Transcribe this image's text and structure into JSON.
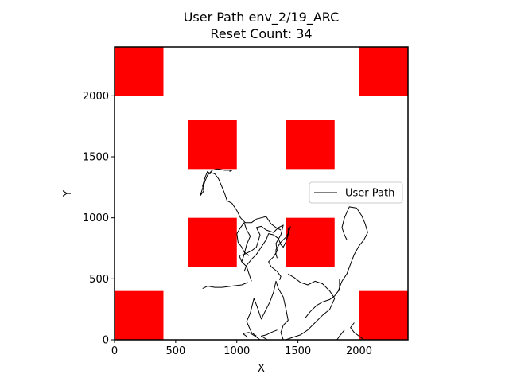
{
  "chart_data": {
    "type": "line",
    "title_lines": [
      "User Path env_2/19_ARC",
      "Reset Count: 34"
    ],
    "xlabel": "X",
    "ylabel": "Y",
    "xlim": [
      0,
      2400
    ],
    "ylim": [
      0,
      2400
    ],
    "xticks": [
      0,
      500,
      1000,
      1500,
      2000
    ],
    "yticks": [
      0,
      500,
      1000,
      1500,
      2000
    ],
    "grid": false,
    "legend_position": "center-right",
    "obstacle_color": "#ff0000",
    "path_color": "#000000",
    "obstacles": [
      {
        "x": 0,
        "y": 2000,
        "width": 400,
        "height": 400
      },
      {
        "x": 2000,
        "y": 2000,
        "width": 400,
        "height": 400
      },
      {
        "x": 600,
        "y": 1400,
        "width": 400,
        "height": 400
      },
      {
        "x": 1400,
        "y": 1400,
        "width": 400,
        "height": 400
      },
      {
        "x": 600,
        "y": 600,
        "width": 400,
        "height": 400
      },
      {
        "x": 1400,
        "y": 600,
        "width": 400,
        "height": 400
      },
      {
        "x": 0,
        "y": 0,
        "width": 400,
        "height": 400
      },
      {
        "x": 2000,
        "y": 0,
        "width": 400,
        "height": 400
      }
    ],
    "series": [
      {
        "name": "User Path",
        "segments": [
          [
            [
              1840,
              430
            ],
            [
              1860,
              480
            ],
            [
              1900,
              540
            ],
            [
              1930,
              620
            ],
            [
              1960,
              700
            ],
            [
              2000,
              770
            ],
            [
              2040,
              820
            ],
            [
              2070,
              880
            ],
            [
              2050,
              950
            ],
            [
              2020,
              1020
            ],
            [
              1980,
              1080
            ],
            [
              1920,
              1090
            ],
            [
              1880,
              1000
            ],
            [
              1860,
              920
            ],
            [
              1880,
              860
            ],
            [
              1900,
              820
            ]
          ],
          [
            [
              1560,
              180
            ],
            [
              1600,
              230
            ],
            [
              1650,
              280
            ],
            [
              1700,
              310
            ],
            [
              1760,
              330
            ],
            [
              1800,
              360
            ],
            [
              1830,
              400
            ],
            [
              1840,
              430
            ]
          ],
          [
            [
              1420,
              540
            ],
            [
              1470,
              510
            ],
            [
              1520,
              470
            ],
            [
              1580,
              450
            ],
            [
              1640,
              480
            ],
            [
              1700,
              460
            ],
            [
              1760,
              400
            ],
            [
              1800,
              340
            ],
            [
              1760,
              250
            ],
            [
              1700,
              200
            ],
            [
              1640,
              140
            ],
            [
              1580,
              80
            ],
            [
              1520,
              40
            ],
            [
              1460,
              20
            ],
            [
              1400,
              0
            ]
          ],
          [
            [
              1380,
              0
            ],
            [
              1360,
              60
            ],
            [
              1380,
              120
            ],
            [
              1420,
              160
            ],
            [
              1400,
              260
            ],
            [
              1380,
              350
            ],
            [
              1340,
              420
            ],
            [
              1320,
              480
            ],
            [
              1300,
              390
            ],
            [
              1270,
              310
            ],
            [
              1240,
              250
            ],
            [
              1200,
              170
            ],
            [
              1170,
              260
            ],
            [
              1140,
              340
            ],
            [
              1110,
              220
            ],
            [
              1080,
              150
            ],
            [
              1120,
              60
            ],
            [
              1160,
              30
            ]
          ],
          [
            [
              1190,
              0
            ],
            [
              1150,
              30
            ],
            [
              1100,
              60
            ],
            [
              1050,
              50
            ],
            [
              1090,
              20
            ]
          ],
          [
            [
              1250,
              0
            ],
            [
              1200,
              30
            ],
            [
              1240,
              40
            ],
            [
              1280,
              60
            ],
            [
              1330,
              80
            ]
          ],
          [
            [
              1120,
              480
            ],
            [
              1100,
              540
            ],
            [
              1080,
              600
            ],
            [
              1040,
              640
            ],
            [
              1020,
              690
            ],
            [
              1060,
              700
            ],
            [
              1120,
              730
            ],
            [
              1160,
              760
            ],
            [
              1190,
              860
            ],
            [
              1160,
              920
            ],
            [
              1200,
              930
            ],
            [
              1240,
              900
            ],
            [
              1300,
              880
            ],
            [
              1340,
              920
            ],
            [
              1380,
              940
            ],
            [
              1360,
              860
            ],
            [
              1320,
              790
            ],
            [
              1330,
              730
            ],
            [
              1300,
              680
            ],
            [
              1260,
              640
            ],
            [
              1280,
              600
            ],
            [
              1330,
              560
            ],
            [
              1360,
              520
            ],
            [
              1350,
              490
            ]
          ],
          [
            [
              1090,
              470
            ],
            [
              1040,
              450
            ],
            [
              960,
              440
            ],
            [
              880,
              430
            ],
            [
              820,
              430
            ],
            [
              760,
              440
            ],
            [
              740,
              430
            ],
            [
              720,
              420
            ]
          ],
          [
            [
              1040,
              640
            ],
            [
              1060,
              700
            ],
            [
              1080,
              780
            ],
            [
              1110,
              850
            ],
            [
              1080,
              900
            ],
            [
              1060,
              960
            ],
            [
              1030,
              920
            ],
            [
              1000,
              870
            ],
            [
              1010,
              800
            ],
            [
              1040,
              760
            ],
            [
              1060,
              720
            ],
            [
              1100,
              690
            ]
          ],
          [
            [
              1060,
              560
            ],
            [
              1080,
              610
            ],
            [
              1120,
              660
            ],
            [
              1160,
              700
            ],
            [
              1200,
              760
            ],
            [
              1240,
              820
            ],
            [
              1260,
              870
            ],
            [
              1300,
              860
            ],
            [
              1340,
              830
            ],
            [
              1360,
              780
            ],
            [
              1380,
              760
            ],
            [
              1400,
              800
            ],
            [
              1420,
              860
            ],
            [
              1420,
              920
            ]
          ],
          [
            [
              1240,
              1010
            ],
            [
              1200,
              1000
            ],
            [
              1160,
              990
            ],
            [
              1120,
              960
            ],
            [
              1070,
              960
            ],
            [
              1030,
              1000
            ],
            [
              1000,
              1060
            ],
            [
              960,
              1120
            ],
            [
              920,
              1140
            ],
            [
              900,
              1200
            ],
            [
              880,
              1250
            ],
            [
              850,
              1320
            ],
            [
              820,
              1360
            ],
            [
              790,
              1370
            ],
            [
              780,
              1360
            ],
            [
              760,
              1380
            ],
            [
              740,
              1330
            ],
            [
              720,
              1260
            ],
            [
              730,
              1220
            ],
            [
              700,
              1180
            ],
            [
              720,
              1240
            ],
            [
              740,
              1300
            ],
            [
              760,
              1350
            ],
            [
              800,
              1390
            ],
            [
              840,
              1400
            ],
            [
              900,
              1390
            ],
            [
              960,
              1390
            ],
            [
              940,
              1380
            ]
          ],
          [
            [
              1240,
              1010
            ],
            [
              1280,
              950
            ],
            [
              1320,
              920
            ],
            [
              1360,
              900
            ]
          ],
          [
            [
              2040,
              0
            ],
            [
              2000,
              30
            ],
            [
              1960,
              60
            ],
            [
              1930,
              100
            ],
            [
              1960,
              140
            ]
          ],
          [
            [
              1880,
              80
            ],
            [
              1840,
              30
            ],
            [
              1820,
              0
            ]
          ],
          [
            [
              1440,
              930
            ],
            [
              1420,
              870
            ],
            [
              1400,
              840
            ],
            [
              1360,
              800
            ],
            [
              1320,
              740
            ],
            [
              1320,
              700
            ],
            [
              1330,
              670
            ]
          ],
          [
            [
              1840,
              400
            ],
            [
              1840,
              470
            ],
            [
              1840,
              500
            ]
          ]
        ]
      }
    ]
  }
}
